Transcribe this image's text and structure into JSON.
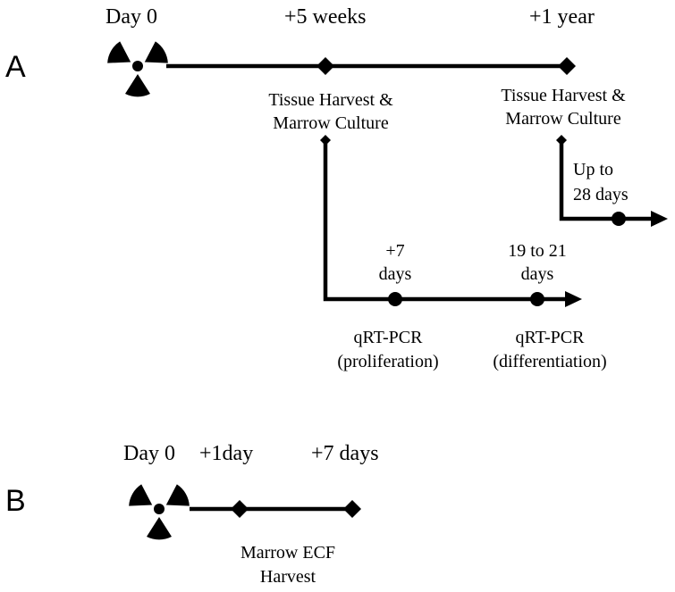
{
  "panel_a": {
    "letter": "A",
    "day0": "Day 0",
    "t_5weeks": "+5 weeks",
    "t_1year": "+1 year",
    "harvest1_line1": "Tissue Harvest &",
    "harvest1_line2": "Marrow Culture",
    "harvest2_line1": "Tissue Harvest &",
    "harvest2_line2": "Marrow Culture",
    "upto_line1": "Up to",
    "upto_line2": "28 days",
    "plus7_line1": "+7",
    "plus7_line2": "days",
    "d19_line1": "19 to 21",
    "d19_line2": "days",
    "qrt1_line1": "qRT-PCR",
    "qrt1_line2": "(proliferation)",
    "qrt2_line1": "qRT-PCR",
    "qrt2_line2": "(differentiation)"
  },
  "panel_b": {
    "letter": "B",
    "day0": "Day 0",
    "t_1day": "+1day",
    "t_7days": "+7 days",
    "ecf_line1": "Marrow ECF",
    "ecf_line2": "Harvest"
  },
  "icons": {
    "radiation": "radiation-icon"
  }
}
